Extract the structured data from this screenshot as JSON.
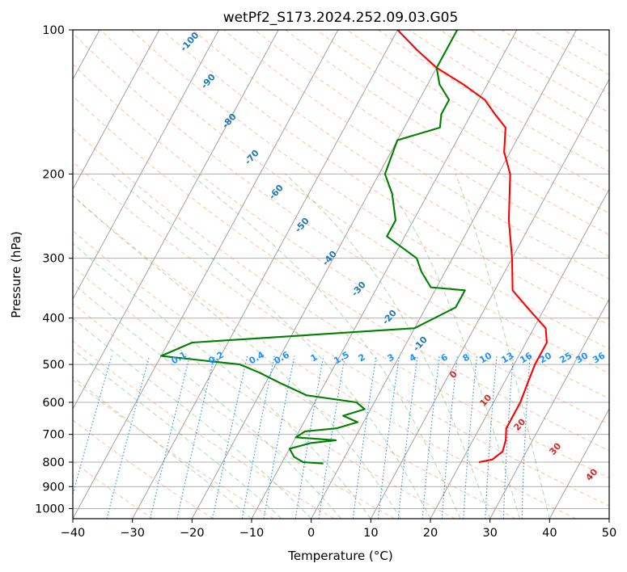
{
  "chart_data": {
    "type": "line",
    "title": "wetPf2_S173.2024.252.09.03.G05",
    "xlabel": "Temperature (°C)",
    "ylabel": "Pressure (hPa)",
    "xlim": [
      -40,
      50
    ],
    "ylim": [
      1050,
      100
    ],
    "y_scale": "log",
    "skew": "skew-T",
    "grid": true,
    "x_ticks": [
      -40,
      -30,
      -20,
      -10,
      0,
      10,
      20,
      30,
      40,
      50
    ],
    "y_ticks": [
      100,
      200,
      300,
      400,
      500,
      600,
      700,
      800,
      900,
      1000
    ],
    "series": [
      {
        "color": "#ff0000",
        "x": [
          23,
          25,
          26,
          25.5,
          24.5,
          24.5,
          24.5,
          24,
          23.5,
          23.5,
          23.5,
          22,
          17,
          13,
          10,
          6,
          2,
          -1,
          -3,
          -6,
          -9,
          -14,
          -20,
          -25,
          -30
        ],
        "y": [
          800,
          790,
          760,
          720,
          680,
          650,
          600,
          550,
          500,
          470,
          450,
          420,
          380,
          350,
          300,
          250,
          200,
          180,
          160,
          150,
          140,
          130,
          120,
          110,
          100
        ]
      },
      {
        "color": "#008000",
        "x": [
          -3,
          -6.5,
          -8.5,
          -10,
          -7,
          -3,
          -10,
          -9,
          -4,
          -1,
          -4,
          -1,
          -3,
          -12,
          -17,
          -22,
          -26,
          -40,
          -36,
          0,
          5,
          5,
          -1,
          -4,
          -6,
          -13,
          -13,
          -16,
          -19,
          -20,
          -14,
          -15,
          -15,
          -18,
          -20,
          -20,
          -20
        ],
        "y": [
          805,
          800,
          780,
          750,
          730,
          720,
          710,
          690,
          680,
          660,
          640,
          620,
          600,
          580,
          550,
          520,
          500,
          480,
          450,
          420,
          380,
          350,
          345,
          320,
          300,
          270,
          250,
          220,
          200,
          170,
          160,
          150,
          140,
          130,
          120,
          110,
          100
        ]
      }
    ],
    "dry_adiabat_labels": [
      "-100",
      "-90",
      "-80",
      "-70",
      "-60",
      "-50",
      "-40",
      "-30",
      "-20",
      "-10"
    ],
    "moist_adiabat_labels": [
      "0",
      "10",
      "20",
      "30",
      "40"
    ],
    "mixing_ratio_labels": [
      "0.1",
      "0.2",
      "0.4",
      "0.6",
      "1",
      "1.5",
      "2",
      "3",
      "4",
      "6",
      "8",
      "10",
      "13",
      "16",
      "20",
      "25",
      "30",
      "36"
    ],
    "colors": {
      "temperature": "#ff0000",
      "dewpoint": "#008000",
      "isotherm": "#999999",
      "dry_adiabat": "#ff7f50",
      "moist_adiabat": "#2ca02c",
      "mixing_ratio": "#1e90ff",
      "dry_label": "#1f77b4",
      "moist_label": "#d62728",
      "mixing_label": "#1e90ff"
    }
  }
}
